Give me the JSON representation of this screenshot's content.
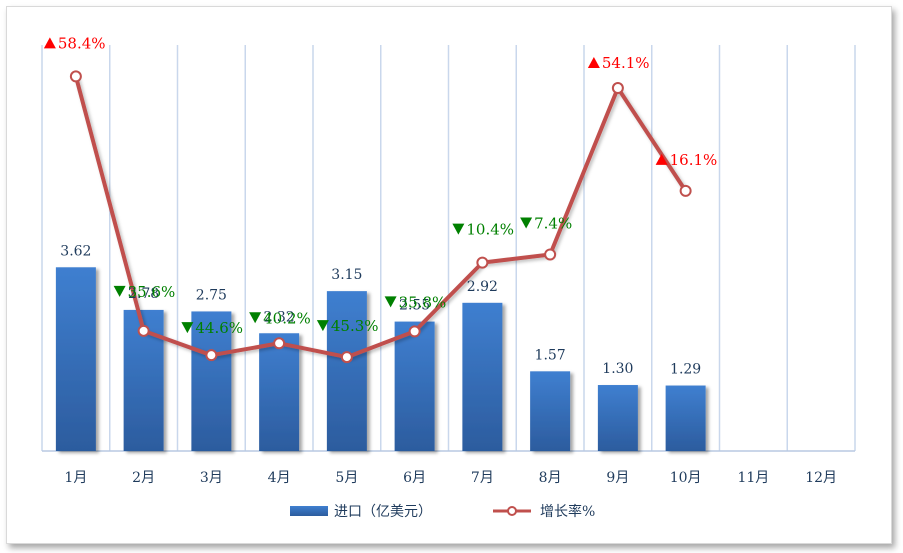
{
  "chart_data": {
    "type": "bar",
    "categories": [
      "1月",
      "2月",
      "3月",
      "4月",
      "5月",
      "6月",
      "7月",
      "8月",
      "9月",
      "10月",
      "11月",
      "12月"
    ],
    "series": [
      {
        "name": "进口（亿美元）",
        "type": "bar",
        "values": [
          3.62,
          2.78,
          2.75,
          2.32,
          3.15,
          2.55,
          2.92,
          1.57,
          1.3,
          1.29,
          null,
          null
        ],
        "color": "#3a74c4"
      },
      {
        "name": "增长率%",
        "type": "line",
        "values": [
          58.4,
          -35.6,
          -44.6,
          -40.2,
          -45.3,
          -35.8,
          -10.4,
          -7.4,
          54.1,
          16.1,
          null,
          null
        ],
        "labels": [
          "58.4%",
          "35.6%",
          "44.6%",
          "40.2%",
          "45.3%",
          "35.8%",
          "10.4%",
          "7.4%",
          "54.1%",
          "16.1%",
          "",
          ""
        ],
        "color": "#c0504d"
      }
    ],
    "bar_ylim": [
      0,
      8.0
    ],
    "line_ylim": [
      -80,
      70
    ],
    "up_color": "#ff0000",
    "down_color": "#008000",
    "grid": "vertical",
    "legend": "bottom"
  },
  "legend": {
    "bar_label": "进口（亿美元）",
    "line_label": "增长率%"
  }
}
